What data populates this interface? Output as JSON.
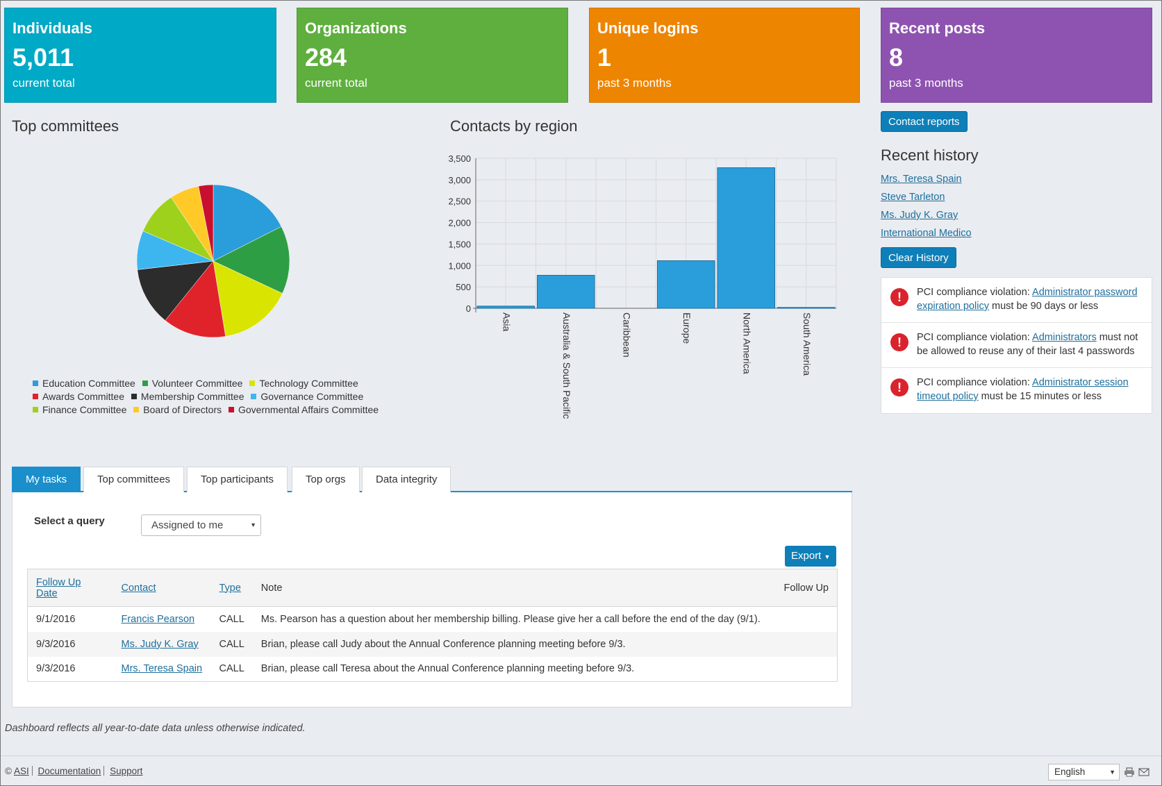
{
  "tiles": [
    {
      "title": "Individuals",
      "value": "5,011",
      "sub": "current total",
      "color": "#00a9c6"
    },
    {
      "title": "Organizations",
      "value": "284",
      "sub": "current total",
      "color": "#5eaf3e"
    },
    {
      "title": "Unique logins",
      "value": "1",
      "sub": "past 3 months",
      "color": "#ee8500"
    },
    {
      "title": "Recent posts",
      "value": "8",
      "sub": "past 3 months",
      "color": "#8e53b0"
    }
  ],
  "committees": {
    "heading": "Top committees",
    "legend": [
      {
        "label": "Education Committee",
        "color": "#2a9edb"
      },
      {
        "label": "Volunteer Committee",
        "color": "#2e9e44"
      },
      {
        "label": "Technology Committee",
        "color": "#d9e500"
      },
      {
        "label": "Awards Committee",
        "color": "#e0232b"
      },
      {
        "label": "Membership Committee",
        "color": "#2c2c2c"
      },
      {
        "label": "Governance Committee",
        "color": "#3db6ef"
      },
      {
        "label": "Finance Committee",
        "color": "#9ed11c"
      },
      {
        "label": "Board of Directors",
        "color": "#ffca28"
      },
      {
        "label": "Governmental Affairs Committee",
        "color": "#c8102e"
      }
    ]
  },
  "region": {
    "heading": "Contacts by region"
  },
  "chart_data": [
    {
      "type": "pie",
      "title": "Top committees",
      "categories": [
        "Education Committee",
        "Volunteer Committee",
        "Technology Committee",
        "Awards Committee",
        "Membership Committee",
        "Governance Committee",
        "Finance Committee",
        "Board of Directors",
        "Governmental Affairs Committee"
      ],
      "values": [
        17,
        14,
        15,
        13,
        12,
        8,
        9,
        6,
        3
      ],
      "colors": [
        "#2a9edb",
        "#2e9e44",
        "#d9e500",
        "#e0232b",
        "#2c2c2c",
        "#3db6ef",
        "#9ed11c",
        "#ffca28",
        "#c8102e"
      ]
    },
    {
      "type": "bar",
      "title": "Contacts by region",
      "categories": [
        "Asia",
        "Australia & South Pacific",
        "Caribbean",
        "Europe",
        "North America",
        "South America"
      ],
      "values": [
        50,
        770,
        0,
        1110,
        3280,
        20
      ],
      "ylim": [
        0,
        3500
      ],
      "yticks": [
        "0",
        "500",
        "1,000",
        "1,500",
        "2,000",
        "2,500",
        "3,000",
        "3,500"
      ],
      "grid": true,
      "color": "#2a9edb"
    }
  ],
  "sidebar": {
    "contact_reports": "Contact reports",
    "history_heading": "Recent history",
    "history": [
      "Mrs. Teresa Spain",
      "Steve Tarleton",
      "Ms. Judy K. Gray",
      "International Medico"
    ],
    "clear_history": "Clear History"
  },
  "alerts": [
    {
      "prefix": "PCI compliance violation: ",
      "link": "Administrator password expiration policy",
      "suffix": " must be 90 days or less"
    },
    {
      "prefix": "PCI compliance violation: ",
      "link": "Administrators",
      "suffix": " must not be allowed to reuse any of their last 4 passwords"
    },
    {
      "prefix": "PCI compliance violation: ",
      "link": "Administrator session timeout policy",
      "suffix": " must be 15 minutes or less"
    }
  ],
  "tabs": [
    "My tasks",
    "Top committees",
    "Top participants",
    "Top orgs",
    "Data integrity"
  ],
  "tasks": {
    "query_label": "Select a query",
    "query_value": "Assigned to me",
    "export_label": "Export",
    "headers": {
      "date": "Follow Up Date",
      "contact": "Contact",
      "type": "Type",
      "note": "Note",
      "followup": "Follow Up"
    },
    "rows": [
      {
        "date": "9/1/2016",
        "contact": "Francis Pearson",
        "type": "CALL",
        "note": "Ms. Pearson has a question about her membership billing. Please give her a call before the end of the day (9/1)."
      },
      {
        "date": "9/3/2016",
        "contact": "Ms. Judy K. Gray",
        "type": "CALL",
        "note": "Brian, please call Judy about the Annual Conference planning meeting before 9/3."
      },
      {
        "date": "9/3/2016",
        "contact": "Mrs. Teresa Spain",
        "type": "CALL",
        "note": "Brian, please call Teresa about the Annual Conference planning meeting before 9/3."
      }
    ]
  },
  "footnote": "Dashboard reflects all year-to-date data unless otherwise indicated.",
  "footer": {
    "copyright": "©",
    "asi": "ASI",
    "documentation": "Documentation",
    "support": "Support",
    "language": "English"
  }
}
